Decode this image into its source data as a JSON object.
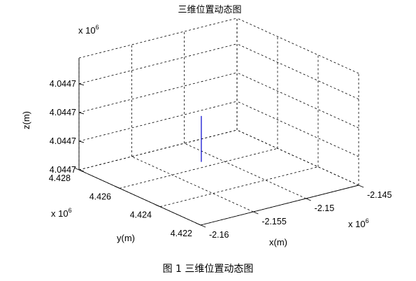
{
  "chart_data": {
    "type": "line",
    "title": "三维位置动态图",
    "xlabel": "x(m)",
    "ylabel": "y(m)",
    "zlabel": "z(m)",
    "x_exponent": "x 10",
    "x_exponent_power": "6",
    "y_exponent": "x 10",
    "y_exponent_power": "6",
    "z_exponent": "x 10",
    "z_exponent_power": "6",
    "x_ticks": [
      -2.16,
      -2.155,
      -2.15,
      -2.145
    ],
    "x_tick_labels": [
      "-2.16",
      "-2.155",
      "-2.15",
      "-2.145"
    ],
    "y_ticks": [
      4.422,
      4.424,
      4.426,
      4.428
    ],
    "y_tick_labels": [
      "4.422",
      "4.424",
      "4.426",
      "4.428"
    ],
    "z_tick_labels": [
      "4.0447",
      "4.0447",
      "4.0447",
      "4.0447"
    ],
    "xlim": [
      -2.16,
      -2.145
    ],
    "ylim": [
      4.422,
      4.428
    ],
    "zlim_relative": [
      0,
      3
    ],
    "grid": true,
    "line_color": "#0000cc",
    "series": [
      {
        "points": [
          {
            "x": -2.1532,
            "y": 4.4255,
            "z_rel": 0.45
          },
          {
            "x": -2.1532,
            "y": 4.4255,
            "z_rel": 2.05
          }
        ]
      }
    ]
  },
  "caption": "图 1  三维位置动态图"
}
